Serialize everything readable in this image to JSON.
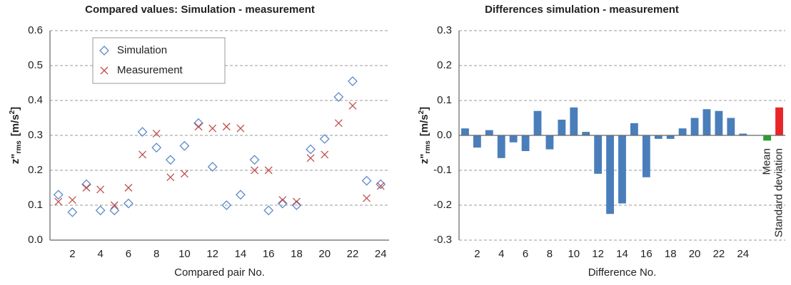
{
  "chart_data": [
    {
      "type": "scatter",
      "title": "Compared values: Simulation - measurement",
      "xlabel": "Compared pair No.",
      "ylabel": {
        "main": "z\"",
        "sub": "rms",
        "unit": "[m/s",
        "sup": "2",
        "close": "]"
      },
      "x": [
        1,
        2,
        3,
        4,
        5,
        6,
        7,
        8,
        9,
        10,
        11,
        12,
        13,
        14,
        15,
        16,
        17,
        18,
        19,
        20,
        21,
        22,
        23,
        24
      ],
      "series": [
        {
          "name": "Simulation",
          "color": "#5b8ac9",
          "marker": "diamond",
          "values": [
            0.13,
            0.08,
            0.16,
            0.085,
            0.085,
            0.105,
            0.31,
            0.265,
            0.23,
            0.27,
            0.335,
            0.21,
            0.1,
            0.13,
            0.23,
            0.085,
            0.105,
            0.1,
            0.26,
            0.29,
            0.41,
            0.455,
            0.17,
            0.16
          ]
        },
        {
          "name": "Measurement",
          "color": "#c0504d",
          "marker": "x",
          "values": [
            0.11,
            0.115,
            0.15,
            0.145,
            0.1,
            0.15,
            0.245,
            0.305,
            0.18,
            0.19,
            0.325,
            0.32,
            0.325,
            0.32,
            0.2,
            0.2,
            0.115,
            0.11,
            0.235,
            0.245,
            0.335,
            0.385,
            0.12,
            0.155
          ]
        }
      ],
      "xlim": [
        0.4,
        24.6
      ],
      "xticks": [
        2,
        4,
        6,
        8,
        10,
        12,
        14,
        16,
        18,
        20,
        22,
        24
      ],
      "ylim": [
        0,
        0.6
      ],
      "yticks": [
        {
          "value": 0,
          "label": "0.0"
        },
        0.1,
        0.2,
        0.3,
        0.4,
        0.5,
        0.6
      ],
      "grid": true,
      "legend": "upper-left"
    },
    {
      "type": "bar",
      "title": "Differences simulation - measurement",
      "xlabel": "Difference No.",
      "ylabel": {
        "main": "z\"",
        "sub": "rms",
        "unit": "[m/s",
        "sup": "2",
        "close": "]"
      },
      "categories": [
        null,
        "2",
        null,
        "4",
        null,
        "6",
        null,
        "8",
        null,
        "10",
        null,
        "12",
        null,
        "14",
        null,
        "16",
        null,
        "18",
        null,
        "20",
        null,
        "22",
        null,
        "24",
        null,
        "Mean",
        "Standard deviation"
      ],
      "values": [
        0.02,
        -0.035,
        0.015,
        -0.065,
        -0.02,
        -0.045,
        0.07,
        -0.04,
        0.045,
        0.08,
        0.01,
        -0.11,
        -0.225,
        -0.195,
        0.035,
        -0.12,
        -0.01,
        -0.01,
        0.02,
        0.05,
        0.075,
        0.07,
        0.05,
        0.005,
        null,
        -0.015,
        0.08
      ],
      "colors": [
        "#4a7ebb",
        "#4a7ebb",
        "#4a7ebb",
        "#4a7ebb",
        "#4a7ebb",
        "#4a7ebb",
        "#4a7ebb",
        "#4a7ebb",
        "#4a7ebb",
        "#4a7ebb",
        "#4a7ebb",
        "#4a7ebb",
        "#4a7ebb",
        "#4a7ebb",
        "#4a7ebb",
        "#4a7ebb",
        "#4a7ebb",
        "#4a7ebb",
        "#4a7ebb",
        "#4a7ebb",
        "#4a7ebb",
        "#4a7ebb",
        "#4a7ebb",
        "#4a7ebb",
        "#4a7ebb",
        "#2ca02c",
        "#e8262a"
      ],
      "ylim": [
        -0.3,
        0.3
      ],
      "yticks": [
        -0.3,
        -0.2,
        -0.1,
        {
          "value": 0,
          "label": "0.0"
        },
        0.1,
        0.2,
        0.3
      ],
      "grid": true
    }
  ]
}
